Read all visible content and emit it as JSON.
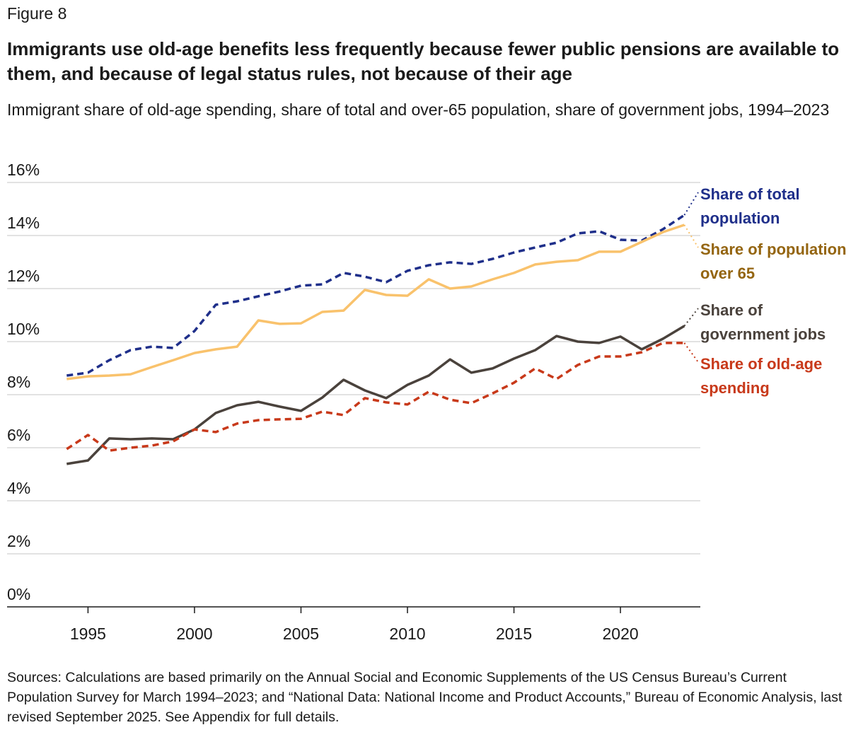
{
  "chart_data": {
    "type": "line",
    "figure_label": "Figure 8",
    "title": "Immigrants use old-age benefits less frequently because fewer public pensions are available to them, and because of legal status rules, not because of their age",
    "subtitle": "Immigrant share of old-age spending, share of total and over-65 population, share of government jobs, 1994–2023",
    "source": "Sources: Calculations are based primarily on the Annual Social and Economic Supplements of the US Census Bureau’s Current Population Survey for March 1994–2023; and “National Data: National Income and Product Accounts,” Bureau of Economic Analysis, last revised September 2025. See Appendix for full details.",
    "x": [
      1994,
      1995,
      1996,
      1997,
      1998,
      1999,
      2000,
      2001,
      2002,
      2003,
      2004,
      2005,
      2006,
      2007,
      2008,
      2009,
      2010,
      2011,
      2012,
      2013,
      2014,
      2015,
      2016,
      2017,
      2018,
      2019,
      2020,
      2021,
      2022,
      2023
    ],
    "xlim": [
      1991.2,
      2023.75
    ],
    "xticks": [
      1995,
      2000,
      2005,
      2010,
      2015,
      2020
    ],
    "ylim": [
      0,
      16
    ],
    "yticks": [
      {
        "value": 0,
        "label": "0%"
      },
      {
        "value": 2,
        "label": "2%"
      },
      {
        "value": 4,
        "label": "4%"
      },
      {
        "value": 6,
        "label": "6%"
      },
      {
        "value": 8,
        "label": "8%"
      },
      {
        "value": 10,
        "label": "10%"
      },
      {
        "value": 12,
        "label": "12%"
      },
      {
        "value": 14,
        "label": "14%"
      },
      {
        "value": 16,
        "label": "16%"
      }
    ],
    "grid": true,
    "series": [
      {
        "name": "Share of total population",
        "color": "#1f2f8a",
        "label_color": "#1f2f8a",
        "dashed": true,
        "values": [
          8.72,
          8.83,
          9.3,
          9.68,
          9.81,
          9.76,
          10.4,
          11.39,
          11.52,
          11.71,
          11.89,
          12.11,
          12.16,
          12.59,
          12.45,
          12.24,
          12.67,
          12.88,
          12.99,
          12.93,
          13.12,
          13.36,
          13.55,
          13.73,
          14.08,
          14.16,
          13.84,
          13.81,
          14.24,
          14.77
        ]
      },
      {
        "name": "Share of population over 65",
        "color": "#f9c26c",
        "label_color": "#946511",
        "dashed": false,
        "values": [
          8.59,
          8.69,
          8.72,
          8.77,
          9.04,
          9.3,
          9.57,
          9.71,
          9.81,
          10.8,
          10.67,
          10.69,
          11.12,
          11.17,
          11.95,
          11.76,
          11.73,
          12.35,
          12.0,
          12.08,
          12.35,
          12.59,
          12.91,
          13.01,
          13.07,
          13.39,
          13.39,
          13.76,
          14.13,
          14.4
        ]
      },
      {
        "name": "Share of government jobs",
        "color": "#4a423c",
        "label_color": "#4a423c",
        "dashed": false,
        "values": [
          5.39,
          5.52,
          6.35,
          6.32,
          6.35,
          6.32,
          6.69,
          7.31,
          7.6,
          7.73,
          7.55,
          7.39,
          7.89,
          8.56,
          8.16,
          7.87,
          8.37,
          8.72,
          9.33,
          8.83,
          8.99,
          9.36,
          9.68,
          10.21,
          10.0,
          9.95,
          10.19,
          9.71,
          10.11,
          10.59
        ]
      },
      {
        "name": "Share of old-age spending",
        "color": "#c8391a",
        "label_color": "#c8391a",
        "dashed": true,
        "values": [
          5.95,
          6.48,
          5.89,
          6.0,
          6.08,
          6.24,
          6.69,
          6.59,
          6.91,
          7.04,
          7.07,
          7.09,
          7.36,
          7.23,
          7.87,
          7.71,
          7.63,
          8.11,
          7.81,
          7.68,
          8.05,
          8.45,
          8.99,
          8.59,
          9.12,
          9.44,
          9.44,
          9.6,
          9.95,
          9.95
        ]
      }
    ]
  }
}
